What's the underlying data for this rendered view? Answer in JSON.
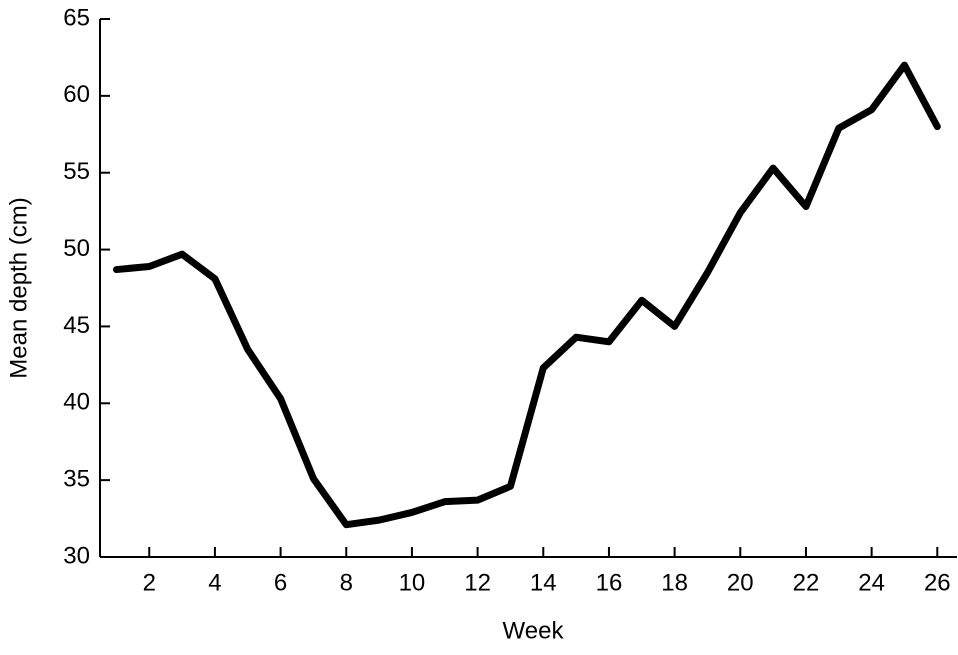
{
  "chart_data": {
    "type": "line",
    "x_label": "Week",
    "y_label": "Mean depth (cm)",
    "x": [
      1,
      2,
      3,
      4,
      5,
      6,
      7,
      8,
      9,
      10,
      11,
      12,
      13,
      14,
      15,
      16,
      17,
      18,
      19,
      20,
      21,
      22,
      23,
      24,
      25,
      26
    ],
    "series": [
      {
        "color": "#000000",
        "values": [
          48.7,
          48.9,
          49.7,
          48.1,
          43.5,
          40.3,
          35.1,
          32.1,
          32.4,
          32.9,
          33.6,
          33.7,
          34.6,
          42.3,
          44.3,
          44.0,
          46.7,
          45.0,
          48.5,
          52.4,
          55.3,
          52.8,
          57.9,
          59.1,
          62.0,
          58.0
        ]
      }
    ],
    "xlim": [
      0.5,
      26.6
    ],
    "xticks": [
      2,
      4,
      6,
      8,
      10,
      12,
      14,
      16,
      18,
      20,
      22,
      24,
      26
    ],
    "ylim": [
      30,
      65
    ],
    "yticks": [
      30,
      35,
      40,
      45,
      50,
      55,
      60,
      65
    ]
  }
}
